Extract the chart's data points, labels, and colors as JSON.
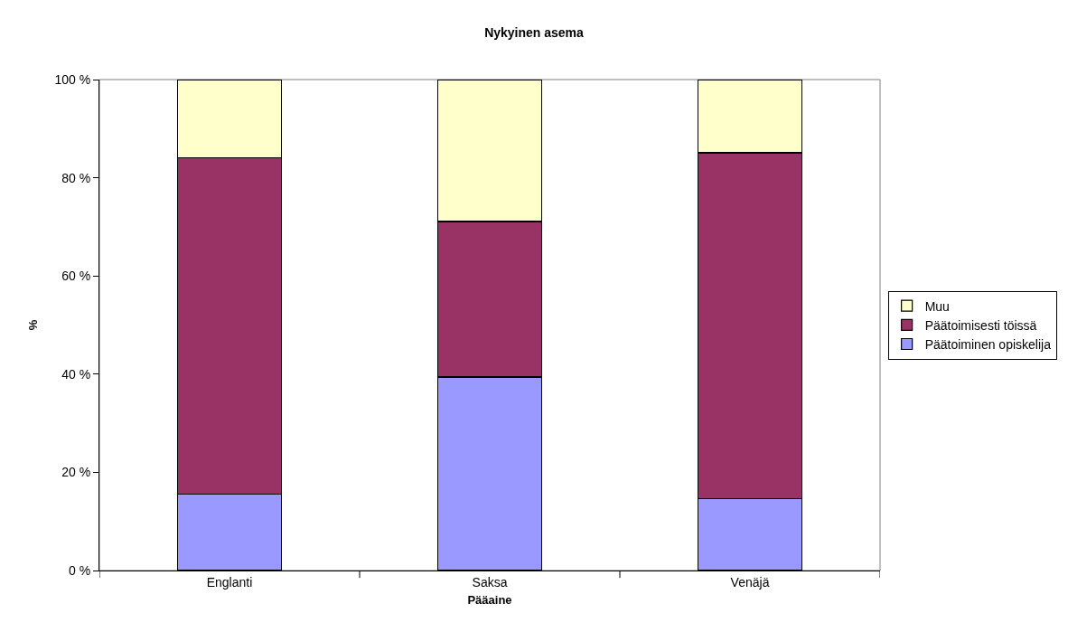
{
  "chart_data": {
    "type": "bar",
    "title": "Nykyinen asema",
    "xlabel": "Pääaine",
    "ylabel": "%",
    "categories": [
      "Englanti",
      "Saksa",
      "Venäjä"
    ],
    "stacked": true,
    "series": [
      {
        "name": "Päätoiminen opiskelija",
        "color": "#9999ff",
        "values": [
          15.6,
          39.4,
          14.7
        ]
      },
      {
        "name": "Päätoimisesti töissä",
        "color": "#993366",
        "values": [
          68.5,
          31.7,
          70.4
        ]
      },
      {
        "name": "Muu",
        "color": "#ffffcc",
        "values": [
          15.9,
          28.9,
          14.9
        ]
      }
    ],
    "ylim": [
      0,
      100
    ],
    "yticks": [
      {
        "value": 0,
        "label": "0 %"
      },
      {
        "value": 20,
        "label": "20 %"
      },
      {
        "value": 40,
        "label": "40 %"
      },
      {
        "value": 60,
        "label": "60 %"
      },
      {
        "value": 80,
        "label": "80 %"
      },
      {
        "value": 100,
        "label": "100 %"
      }
    ],
    "grid": false,
    "legend": "right"
  }
}
